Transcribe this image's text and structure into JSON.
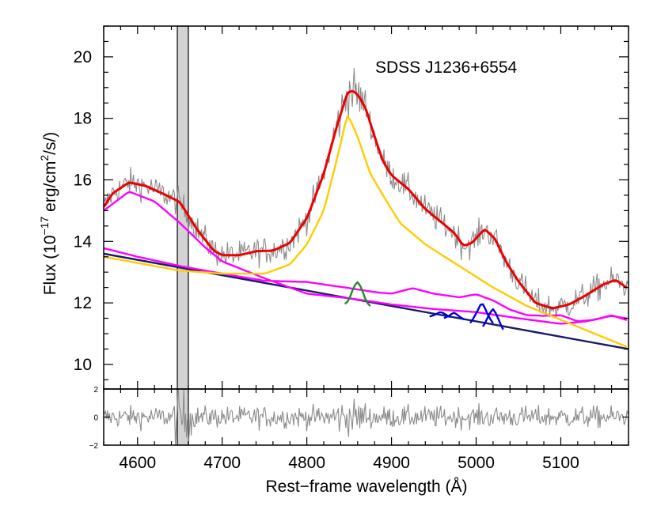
{
  "chart_data": {
    "type": "line",
    "title": "SDSS J1236+6554",
    "xlabel": "Rest−frame wavelength (Å)",
    "ylabel": "Flux (10⁻¹⁷ erg/cm²/s/)",
    "ylabel_parts": {
      "pre": "Flux (10",
      "exp1": "−17",
      "mid": " erg/cm",
      "exp2": "2",
      "post": "/s/)"
    },
    "xlim": [
      4560,
      5180
    ],
    "ylim": [
      9.2,
      21.0
    ],
    "x_ticks": [
      4600,
      4700,
      4800,
      4900,
      5000,
      5100
    ],
    "x_tick_labels": [
      "4600",
      "4700",
      "4800",
      "4900",
      "5000",
      "5100"
    ],
    "y_ticks": [
      10,
      12,
      14,
      16,
      18,
      20
    ],
    "y_tick_labels": [
      "10",
      "12",
      "14",
      "16",
      "18",
      "20"
    ],
    "masked_region": [
      4647,
      4660
    ],
    "residual_panel": {
      "ylim": [
        -2,
        2
      ],
      "y_ticks": [
        -2,
        0,
        2
      ],
      "y_tick_labels": [
        "−2",
        "0",
        "2"
      ]
    },
    "series": [
      {
        "name": "power-law continuum",
        "color": "#1a1a6e",
        "x": [
          4560,
          5180
        ],
        "y": [
          13.6,
          10.5
        ]
      },
      {
        "name": "Fe II emission",
        "color": "#ff00ff",
        "x": [
          4560,
          4600,
          4650,
          4700,
          4750,
          4800,
          4850,
          4880,
          4900,
          4925,
          4950,
          4980,
          5000,
          5020,
          5040,
          5060,
          5080,
          5100,
          5120,
          5140,
          5160,
          5180
        ],
        "y": [
          13.78,
          13.5,
          13.2,
          12.95,
          12.72,
          12.68,
          12.48,
          12.35,
          12.3,
          12.48,
          12.3,
          12.18,
          12.28,
          12.08,
          11.78,
          11.6,
          11.58,
          11.6,
          11.4,
          11.45,
          11.6,
          11.42
        ]
      },
      {
        "name": "Fe II + continuum",
        "color": "#ff00ff",
        "x": [
          4560,
          4590,
          4620,
          4650,
          4680,
          4700,
          4750,
          4800,
          4850,
          4900,
          4950,
          5000,
          5050,
          5100,
          5130,
          5160,
          5180
        ],
        "y": [
          15.0,
          15.62,
          15.3,
          14.6,
          13.8,
          13.35,
          12.8,
          12.3,
          12.15,
          11.95,
          11.8,
          11.7,
          11.5,
          11.32,
          11.4,
          11.58,
          11.48
        ]
      },
      {
        "name": "broad Hβ",
        "color": "#ffcc00",
        "x": [
          4560,
          4650,
          4700,
          4750,
          4780,
          4800,
          4820,
          4835,
          4848,
          4860,
          4875,
          4890,
          4910,
          4940,
          4980,
          5020,
          5060,
          5100,
          5140,
          5180
        ],
        "y": [
          13.5,
          13.05,
          12.95,
          12.95,
          13.25,
          13.9,
          15.0,
          16.6,
          18.15,
          17.4,
          16.2,
          15.5,
          14.6,
          13.9,
          13.2,
          12.5,
          11.9,
          11.45,
          11.0,
          10.55
        ]
      },
      {
        "name": "narrow Hβ",
        "color": "#228b22",
        "x": [
          4845,
          4850,
          4855,
          4860,
          4865,
          4870,
          4875
        ],
        "y": [
          11.95,
          12.1,
          12.5,
          12.72,
          12.45,
          12.05,
          11.88
        ]
      },
      {
        "name": "He I 4922",
        "color": "#0000dd",
        "x": [
          4945,
          4952,
          4958,
          4964,
          4970
        ],
        "y": [
          11.55,
          11.62,
          11.72,
          11.62,
          11.52
        ]
      },
      {
        "name": "He I 5016",
        "color": "#0000dd",
        "x": [
          4962,
          4968,
          4974,
          4980,
          4986
        ],
        "y": [
          11.5,
          11.58,
          11.7,
          11.56,
          11.45
        ]
      },
      {
        "name": "[O III] 4959",
        "color": "#0000dd",
        "x": [
          4993,
          5000,
          5007,
          5014,
          5021
        ],
        "y": [
          11.32,
          11.65,
          12.05,
          11.6,
          11.28
        ]
      },
      {
        "name": "[O III] 5007",
        "color": "#0000dd",
        "x": [
          5008,
          5014,
          5020,
          5026,
          5032
        ],
        "y": [
          11.2,
          11.55,
          11.85,
          11.5,
          11.1
        ]
      },
      {
        "name": "total model",
        "color": "#ee0000",
        "x": [
          4560,
          4570,
          4590,
          4610,
          4630,
          4650,
          4670,
          4690,
          4700,
          4720,
          4740,
          4760,
          4780,
          4800,
          4820,
          4835,
          4848,
          4855,
          4862,
          4870,
          4880,
          4890,
          4900,
          4920,
          4940,
          4960,
          4975,
          4985,
          4995,
          5005,
          5010,
          5016,
          5022,
          5035,
          5050,
          5070,
          5090,
          5110,
          5130,
          5150,
          5165,
          5180
        ],
        "y": [
          15.1,
          15.55,
          15.92,
          15.8,
          15.55,
          15.28,
          14.4,
          13.7,
          13.55,
          13.55,
          13.68,
          13.7,
          13.95,
          14.75,
          16.2,
          17.7,
          18.85,
          18.9,
          18.7,
          18.3,
          17.4,
          16.6,
          16.15,
          15.7,
          15.05,
          14.6,
          14.25,
          13.85,
          13.95,
          14.25,
          14.4,
          14.25,
          14.1,
          13.35,
          12.7,
          12.0,
          11.82,
          11.95,
          12.25,
          12.6,
          12.75,
          12.45
        ]
      }
    ]
  }
}
